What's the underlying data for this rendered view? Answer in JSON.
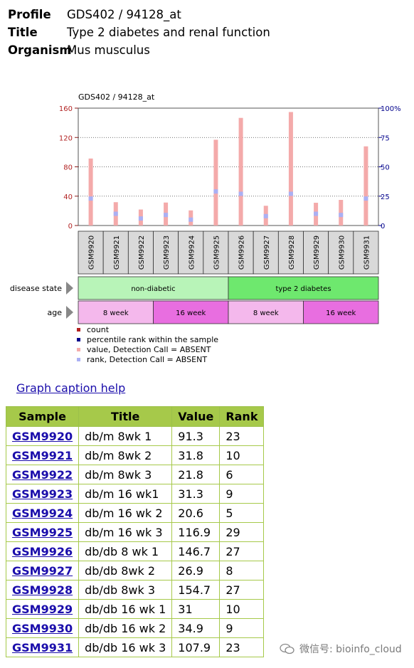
{
  "meta": {
    "profile_label": "Profile",
    "profile_value": "GDS402 / 94128_at",
    "title_label": "Title",
    "title_value": "Type 2 diabetes and renal function",
    "organism_label": "Organism",
    "organism_value": "Mus musculus"
  },
  "chart_data": {
    "type": "bar",
    "title": "GDS402 / 94128_at",
    "categories": [
      "GSM9920",
      "GSM9921",
      "GSM9922",
      "GSM9923",
      "GSM9924",
      "GSM9925",
      "GSM9926",
      "GSM9927",
      "GSM9928",
      "GSM9929",
      "GSM9930",
      "GSM9931"
    ],
    "series": [
      {
        "name": "value, Detection Call = ABSENT",
        "values": [
          91.3,
          31.8,
          21.8,
          31.3,
          20.6,
          116.9,
          146.7,
          26.9,
          154.7,
          31,
          34.9,
          107.9
        ]
      },
      {
        "name": "rank, Detection Call = ABSENT",
        "values": [
          23,
          10,
          6,
          9,
          5,
          29,
          27,
          8,
          27,
          10,
          9,
          23
        ]
      }
    ],
    "ylim": [
      0,
      160
    ],
    "yticks": [
      "0",
      "40",
      "80",
      "120",
      "160"
    ],
    "y2ticks": [
      "0",
      "25",
      "50",
      "75",
      "100%"
    ],
    "y2lim": [
      0,
      100
    ],
    "grid": true,
    "legend": [
      {
        "label": "count",
        "color": "#b22222"
      },
      {
        "label": "percentile rank within the sample",
        "color": "#00008b"
      },
      {
        "label": "value, Detection Call = ABSENT",
        "color": "#f4aaaa"
      },
      {
        "label": "rank, Detection Call = ABSENT",
        "color": "#aab0f4"
      }
    ],
    "legend_position": "bottom-left",
    "factors": [
      {
        "name": "disease state",
        "groups": [
          {
            "label": "non-diabetic",
            "span": 6,
            "color": "#b8f4b8"
          },
          {
            "label": "type 2 diabetes",
            "span": 6,
            "color": "#6ee86e"
          }
        ]
      },
      {
        "name": "age",
        "groups": [
          {
            "label": "8 week",
            "span": 3,
            "color": "#f4b8ec"
          },
          {
            "label": "16 week",
            "span": 3,
            "color": "#e86ee0"
          },
          {
            "label": "8 week",
            "span": 3,
            "color": "#f4b8ec"
          },
          {
            "label": "16 week",
            "span": 3,
            "color": "#e86ee0"
          }
        ]
      }
    ]
  },
  "caption_help": "Graph caption help",
  "table": {
    "headers": [
      "Sample",
      "Title",
      "Value",
      "Rank"
    ],
    "rows": [
      [
        "GSM9920",
        "db/m 8wk 1",
        "91.3",
        "23"
      ],
      [
        "GSM9921",
        "db/m 8wk 2",
        "31.8",
        "10"
      ],
      [
        "GSM9922",
        "db/m 8wk 3",
        "21.8",
        "6"
      ],
      [
        "GSM9923",
        "db/m 16 wk1",
        "31.3",
        "9"
      ],
      [
        "GSM9924",
        "db/m 16 wk 2",
        "20.6",
        "5"
      ],
      [
        "GSM9925",
        "db/m 16 wk 3",
        "116.9",
        "29"
      ],
      [
        "GSM9926",
        "db/db 8 wk 1",
        "146.7",
        "27"
      ],
      [
        "GSM9927",
        "db/db 8wk 2",
        "26.9",
        "8"
      ],
      [
        "GSM9928",
        "db/db 8wk 3",
        "154.7",
        "27"
      ],
      [
        "GSM9929",
        "db/db 16 wk 1",
        "31",
        "10"
      ],
      [
        "GSM9930",
        "db/db 16 wk 2",
        "34.9",
        "9"
      ],
      [
        "GSM9931",
        "db/db 16 wk 3",
        "107.9",
        "23"
      ]
    ]
  },
  "watermark": "微信号: bioinfo_cloud"
}
